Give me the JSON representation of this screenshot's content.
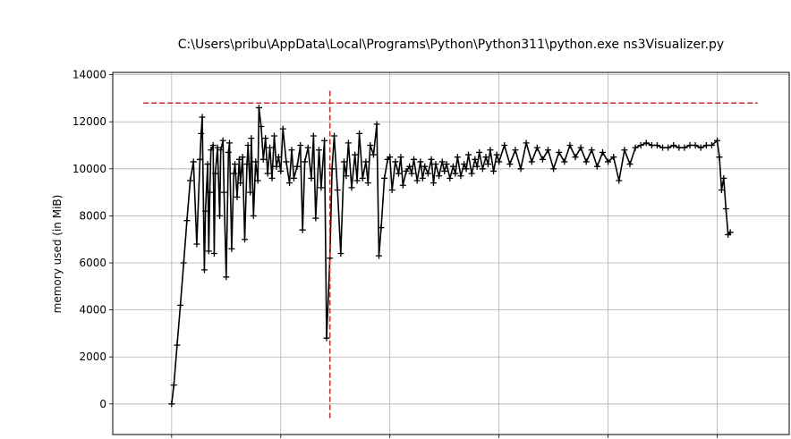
{
  "chart_data": {
    "type": "line",
    "title": "C:\\Users\\pribu\\AppData\\Local\\Programs\\Python\\Python311\\python.exe ns3Visualizer.py",
    "xlabel": "",
    "ylabel": "memory used (in MiB)",
    "ylim": [
      -1300,
      14100
    ],
    "xlim": [
      -0.54,
      5.66
    ],
    "y_ticks": [
      "0",
      "2000",
      "4000",
      "6000",
      "8000",
      "10000",
      "12000",
      "14000"
    ],
    "x_ticks": [
      0,
      1,
      2,
      3,
      4,
      5
    ],
    "x_tick_labels_visible": false,
    "grid": true,
    "marker": "+",
    "series_color": "#000000",
    "reference_color": "#d62728",
    "series": [
      {
        "x": [
          0.0,
          0.02,
          0.05,
          0.08,
          0.11,
          0.14,
          0.17,
          0.2,
          0.23,
          0.26,
          0.27,
          0.28,
          0.3,
          0.31,
          0.33,
          0.34,
          0.35,
          0.36,
          0.38,
          0.39,
          0.4,
          0.42,
          0.44,
          0.45,
          0.47,
          0.48,
          0.5,
          0.52,
          0.53,
          0.55,
          0.57,
          0.58,
          0.6,
          0.62,
          0.63,
          0.65,
          0.67,
          0.69,
          0.7,
          0.72,
          0.73,
          0.75,
          0.77,
          0.79,
          0.8,
          0.82,
          0.84,
          0.86,
          0.88,
          0.9,
          0.92,
          0.94,
          0.96,
          0.98,
          1.0,
          1.02,
          1.05,
          1.08,
          1.1,
          1.12,
          1.15,
          1.18,
          1.2,
          1.22,
          1.25,
          1.28,
          1.3,
          1.32,
          1.35,
          1.37,
          1.4,
          1.42,
          1.45,
          1.47,
          1.49,
          1.52,
          1.55,
          1.58,
          1.6,
          1.62,
          1.65,
          1.68,
          1.7,
          1.72,
          1.75,
          1.78,
          1.8,
          1.82,
          1.85,
          1.88,
          1.9,
          1.92,
          1.95,
          1.98,
          2.0,
          2.02,
          2.05,
          2.08,
          2.1,
          2.12,
          2.15,
          2.18,
          2.2,
          2.22,
          2.25,
          2.28,
          2.3,
          2.32,
          2.35,
          2.38,
          2.4,
          2.42,
          2.45,
          2.48,
          2.5,
          2.52,
          2.55,
          2.58,
          2.6,
          2.62,
          2.65,
          2.68,
          2.7,
          2.72,
          2.75,
          2.78,
          2.8,
          2.82,
          2.85,
          2.88,
          2.9,
          2.92,
          2.95,
          2.98,
          3.0,
          3.05,
          3.1,
          3.15,
          3.2,
          3.25,
          3.3,
          3.35,
          3.4,
          3.45,
          3.5,
          3.55,
          3.6,
          3.65,
          3.7,
          3.75,
          3.8,
          3.85,
          3.9,
          3.95,
          4.0,
          4.05,
          4.1,
          4.15,
          4.2,
          4.25,
          4.3,
          4.35,
          4.4,
          4.45,
          4.5,
          4.55,
          4.6,
          4.65,
          4.7,
          4.75,
          4.8,
          4.85,
          4.9,
          4.95,
          5.0,
          5.02,
          5.04,
          5.06,
          5.08,
          5.1,
          5.12
        ],
        "values": [
          0,
          800,
          2500,
          4200,
          6000,
          7800,
          9500,
          10300,
          6800,
          10400,
          11500,
          12200,
          5700,
          8200,
          10200,
          6500,
          9000,
          10800,
          11000,
          6400,
          9800,
          10900,
          8000,
          10800,
          11200,
          9000,
          5400,
          10700,
          11100,
          6600,
          9800,
          10200,
          8800,
          10400,
          9400,
          10500,
          7000,
          10200,
          11000,
          9000,
          11300,
          8000,
          10300,
          9500,
          12600,
          11800,
          10400,
          11300,
          9800,
          10900,
          9600,
          11400,
          10100,
          10500,
          9900,
          11700,
          10300,
          9400,
          10800,
          9600,
          10100,
          11000,
          7400,
          10300,
          10900,
          9600,
          11400,
          7900,
          10800,
          9200,
          11200,
          2800,
          6200,
          10000,
          11400,
          9100,
          6400,
          10300,
          9700,
          11100,
          9200,
          10600,
          9500,
          11500,
          9600,
          10300,
          9400,
          11000,
          10600,
          11900,
          6300,
          7500,
          9600,
          10400,
          10500,
          9100,
          10300,
          9800,
          10500,
          9300,
          9900,
          10100,
          9800,
          10400,
          9500,
          10300,
          9600,
          10100,
          9800,
          10400,
          9400,
          10200,
          9700,
          10300,
          9900,
          10200,
          9600,
          10100,
          9800,
          10500,
          9700,
          10200,
          10000,
          10600,
          9800,
          10400,
          10100,
          10700,
          10000,
          10500,
          10200,
          10800,
          9900,
          10600,
          10300,
          11000,
          10200,
          10800,
          10000,
          11100,
          10300,
          10900,
          10400,
          10800,
          10000,
          10700,
          10300,
          11000,
          10500,
          10900,
          10300,
          10800,
          10100,
          10700,
          10300,
          10500,
          9500,
          10800,
          10200,
          10900,
          11000,
          11100,
          11000,
          11000,
          10900,
          10900,
          11000,
          10900,
          10900,
          11000,
          11000,
          10900,
          11000,
          11000,
          11200,
          10500,
          9100,
          9600,
          8300,
          7200,
          7300
        ]
      }
    ],
    "reference_lines": [
      {
        "orientation": "horizontal",
        "y": 12800,
        "x_from": -0.26,
        "x_to": 5.37,
        "style": "dashed"
      },
      {
        "orientation": "vertical",
        "x": 1.45,
        "y_from": -600,
        "y_to": 13400,
        "style": "dashed"
      }
    ]
  }
}
